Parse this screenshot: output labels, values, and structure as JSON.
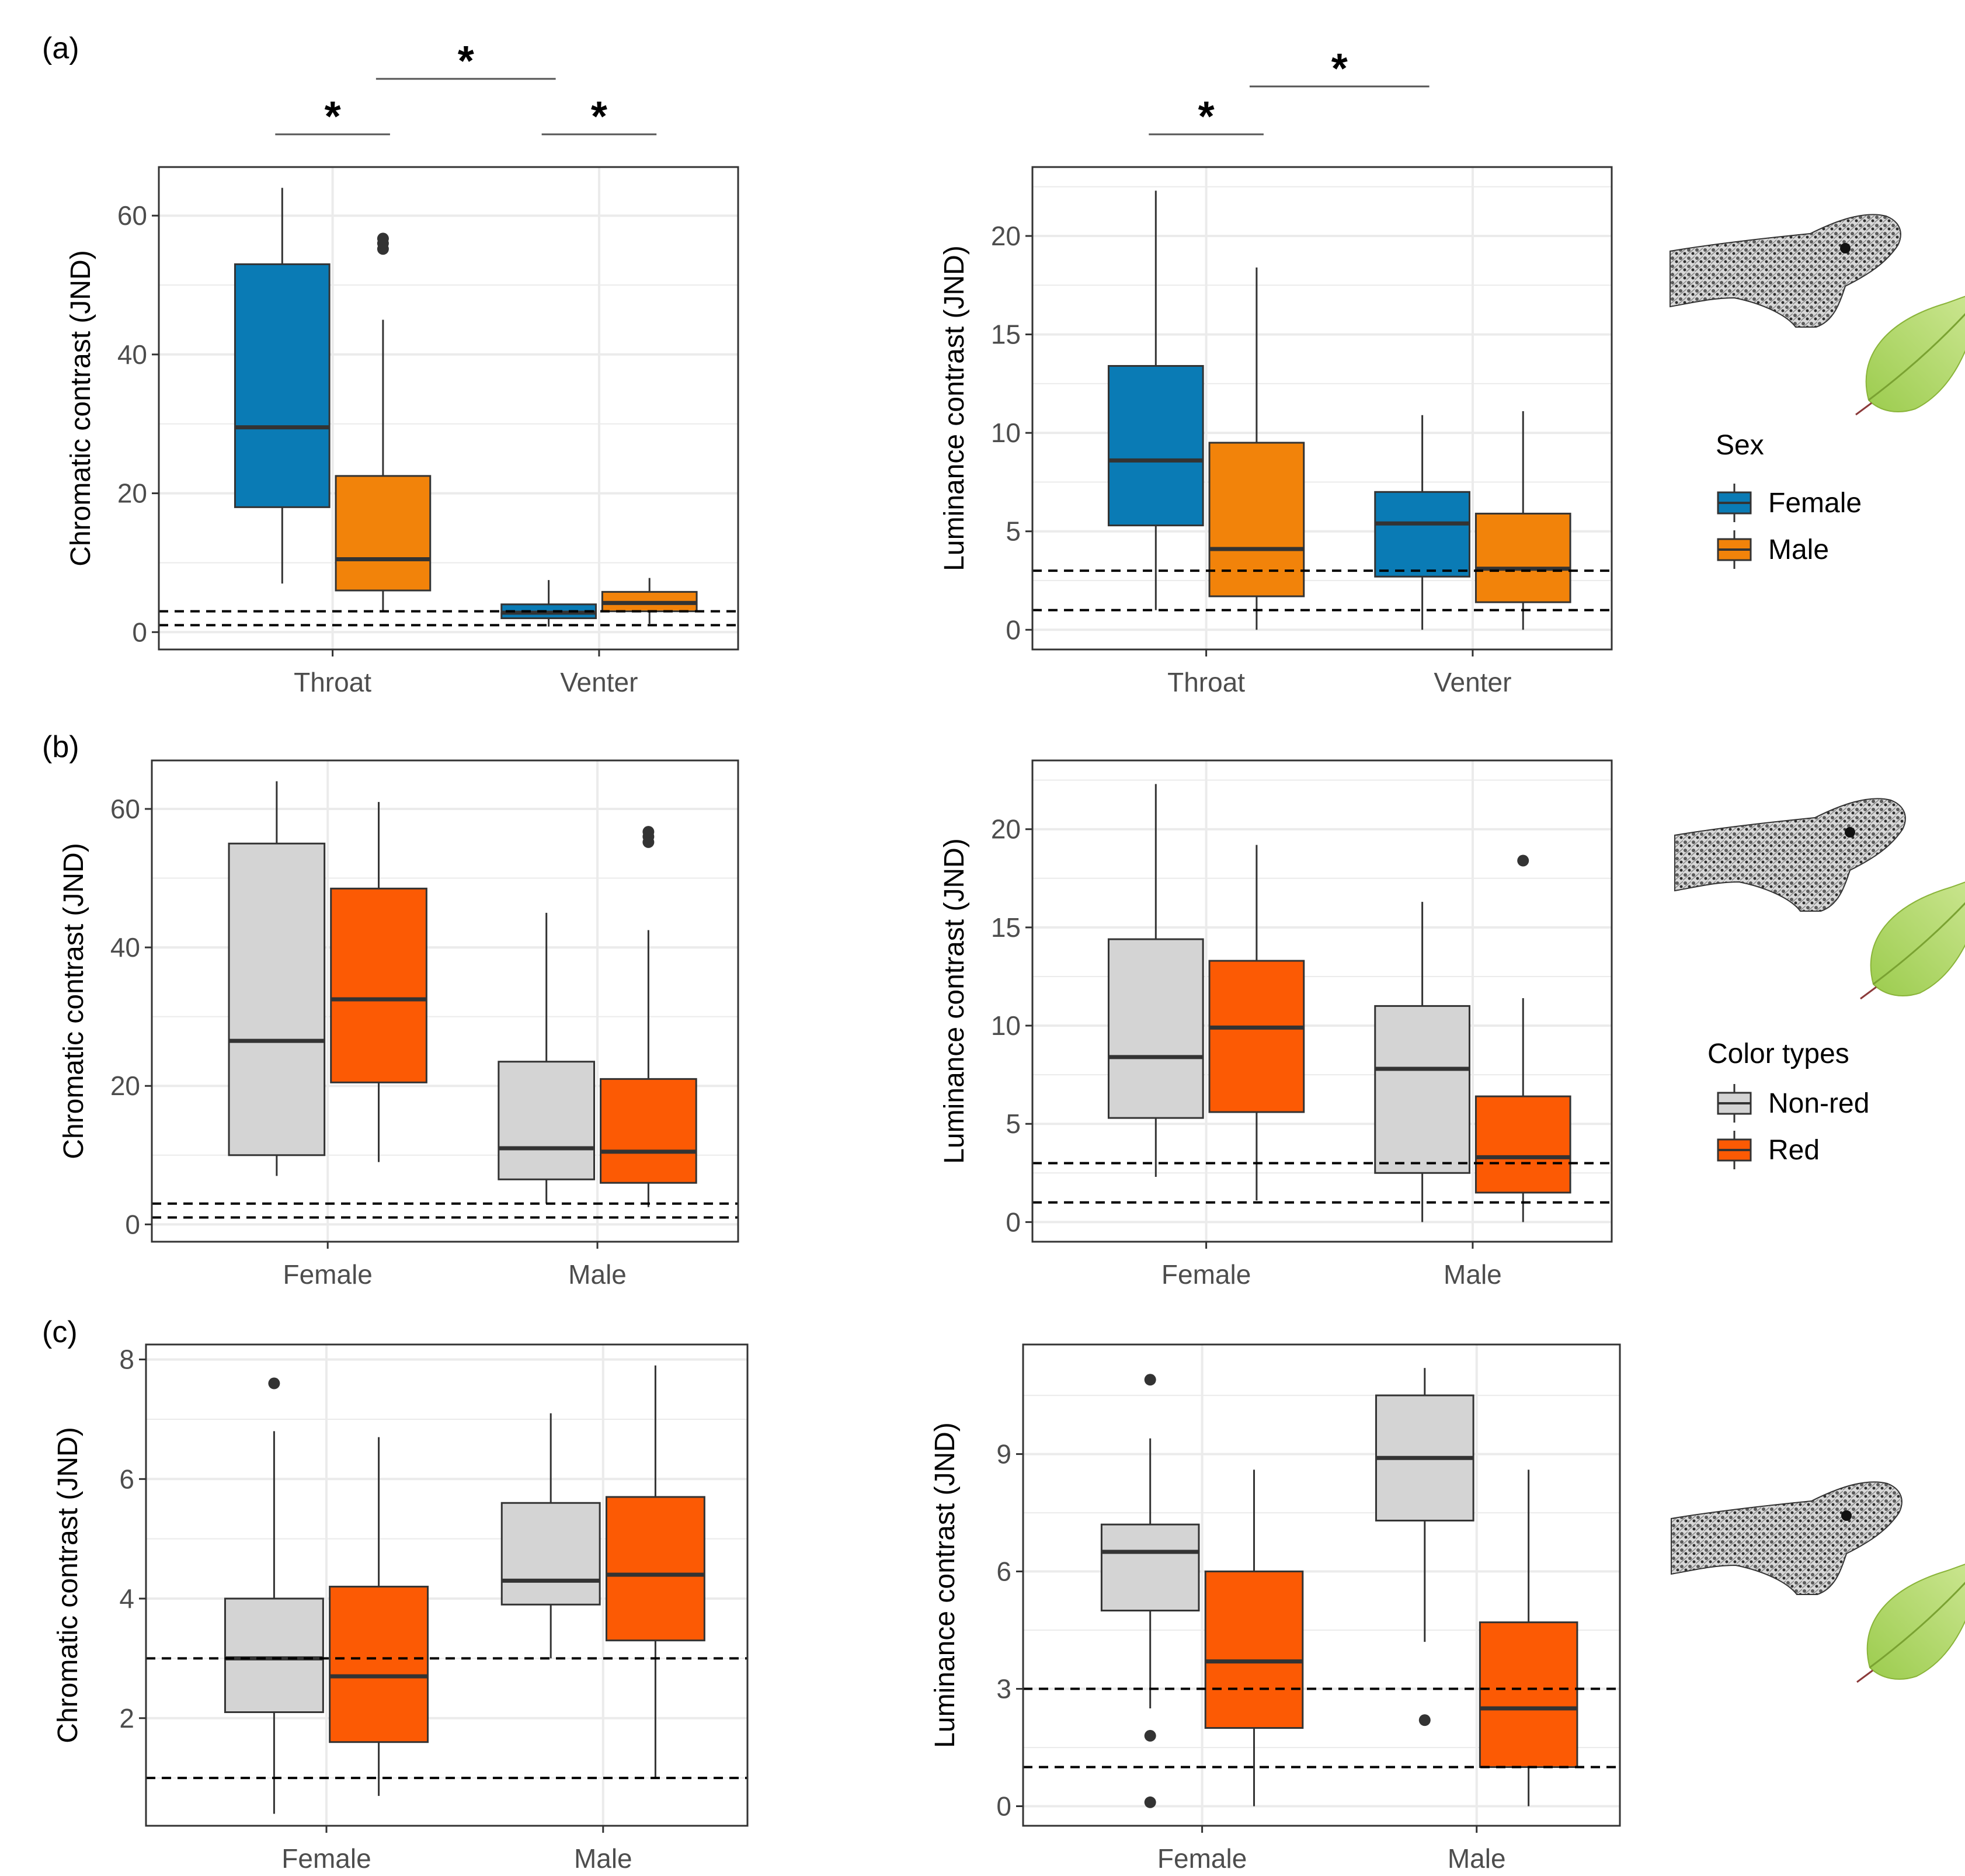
{
  "colors": {
    "female": "#0a7bb5",
    "male": "#f2830a",
    "nonred": "#d4d4d4",
    "red": "#fc5a04",
    "grid": "#ebebeb",
    "panel_border": "#333333",
    "box_line": "#333333"
  },
  "icons": [
    "lizard-leaf-illustration"
  ],
  "legends": {
    "sex": {
      "title": "Sex",
      "items": [
        "Female",
        "Male"
      ]
    },
    "color_types": {
      "title": "Color types",
      "items": [
        "Non-red",
        "Red"
      ]
    }
  },
  "chart_data": [
    {
      "id": "a-left",
      "panel_label": "(a)",
      "type": "boxplot",
      "ylabel": "Chromatic contrast (JND)",
      "categories": [
        "Throat",
        "Venter"
      ],
      "group_legend": "sex",
      "ylim": [
        -2.5,
        67
      ],
      "yticks": [
        0,
        20,
        40,
        60
      ],
      "reference_lines": [
        1,
        3
      ],
      "boxes": [
        {
          "category": "Throat",
          "group": "Female",
          "min": 7,
          "q1": 18,
          "median": 29.5,
          "q3": 53,
          "max": 64,
          "outliers": []
        },
        {
          "category": "Throat",
          "group": "Male",
          "min": 3,
          "q1": 6,
          "median": 10.5,
          "q3": 22.5,
          "max": 45,
          "outliers": [
            55.2,
            56,
            56.7
          ]
        },
        {
          "category": "Venter",
          "group": "Female",
          "min": 0.8,
          "q1": 2,
          "median": 2.8,
          "q3": 4,
          "max": 7.5,
          "outliers": []
        },
        {
          "category": "Venter",
          "group": "Male",
          "min": 1.2,
          "q1": 3,
          "median": 4.2,
          "q3": 5.8,
          "max": 7.8,
          "outliers": []
        }
      ],
      "significance": [
        {
          "between": [
            "Throat Female",
            "Throat Male"
          ],
          "label": "*"
        },
        {
          "between": [
            "Throat Male",
            "Venter Female"
          ],
          "label": "*"
        },
        {
          "between": [
            "Venter Female",
            "Venter Male"
          ],
          "label": "*"
        }
      ]
    },
    {
      "id": "a-right",
      "panel_label": "",
      "type": "boxplot",
      "ylabel": "Luminance contrast (JND)",
      "categories": [
        "Throat",
        "Venter"
      ],
      "group_legend": "sex",
      "ylim": [
        -1,
        23.5
      ],
      "yticks": [
        0,
        5,
        10,
        15,
        20
      ],
      "reference_lines": [
        1,
        3
      ],
      "boxes": [
        {
          "category": "Throat",
          "group": "Female",
          "min": 1,
          "q1": 5.3,
          "median": 8.6,
          "q3": 13.4,
          "max": 22.3,
          "outliers": []
        },
        {
          "category": "Throat",
          "group": "Male",
          "min": 0,
          "q1": 1.7,
          "median": 4.1,
          "q3": 9.5,
          "max": 18.4,
          "outliers": []
        },
        {
          "category": "Venter",
          "group": "Female",
          "min": 0,
          "q1": 2.7,
          "median": 5.4,
          "q3": 7,
          "max": 10.9,
          "outliers": []
        },
        {
          "category": "Venter",
          "group": "Male",
          "min": 0,
          "q1": 1.4,
          "median": 3.1,
          "q3": 5.9,
          "max": 11.1,
          "outliers": []
        }
      ],
      "significance": [
        {
          "between": [
            "Throat Female",
            "Throat Male"
          ],
          "label": "*"
        },
        {
          "between": [
            "Throat Male",
            "Venter Female"
          ],
          "label": "*"
        }
      ]
    },
    {
      "id": "b-left",
      "panel_label": "(b)",
      "type": "boxplot",
      "ylabel": "Chromatic contrast (JND)",
      "categories": [
        "Female",
        "Male"
      ],
      "group_legend": "color_types",
      "ylim": [
        -2.5,
        67
      ],
      "yticks": [
        0,
        20,
        40,
        60
      ],
      "reference_lines": [
        1,
        3
      ],
      "boxes": [
        {
          "category": "Female",
          "group": "Non-red",
          "min": 7,
          "q1": 10,
          "median": 26.5,
          "q3": 55,
          "max": 64,
          "outliers": []
        },
        {
          "category": "Female",
          "group": "Red",
          "min": 9,
          "q1": 20.5,
          "median": 32.5,
          "q3": 48.5,
          "max": 61,
          "outliers": []
        },
        {
          "category": "Male",
          "group": "Non-red",
          "min": 3,
          "q1": 6.5,
          "median": 11,
          "q3": 23.5,
          "max": 45,
          "outliers": []
        },
        {
          "category": "Male",
          "group": "Red",
          "min": 2.5,
          "q1": 6,
          "median": 10.5,
          "q3": 21,
          "max": 42.5,
          "outliers": [
            55.2,
            56,
            56.7
          ]
        }
      ],
      "significance": []
    },
    {
      "id": "b-right",
      "panel_label": "",
      "type": "boxplot",
      "ylabel": "Luminance contrast (JND)",
      "categories": [
        "Female",
        "Male"
      ],
      "group_legend": "color_types",
      "ylim": [
        -1,
        23.5
      ],
      "yticks": [
        0,
        5,
        10,
        15,
        20
      ],
      "reference_lines": [
        1,
        3
      ],
      "boxes": [
        {
          "category": "Female",
          "group": "Non-red",
          "min": 2.3,
          "q1": 5.3,
          "median": 8.4,
          "q3": 14.4,
          "max": 22.3,
          "outliers": []
        },
        {
          "category": "Female",
          "group": "Red",
          "min": 1.1,
          "q1": 5.6,
          "median": 9.9,
          "q3": 13.3,
          "max": 19.2,
          "outliers": []
        },
        {
          "category": "Male",
          "group": "Non-red",
          "min": 0,
          "q1": 2.5,
          "median": 7.8,
          "q3": 11,
          "max": 16.3,
          "outliers": []
        },
        {
          "category": "Male",
          "group": "Red",
          "min": 0,
          "q1": 1.5,
          "median": 3.3,
          "q3": 6.4,
          "max": 11.4,
          "outliers": [
            18.4
          ]
        }
      ],
      "significance": []
    },
    {
      "id": "c-left",
      "panel_label": "(c)",
      "type": "boxplot",
      "ylabel": "Chromatic contrast (JND)",
      "categories": [
        "Female",
        "Male"
      ],
      "group_legend": "color_types",
      "ylim": [
        0.2,
        8.25
      ],
      "yticks": [
        2,
        4,
        6,
        8
      ],
      "reference_lines": [
        1,
        3
      ],
      "boxes": [
        {
          "category": "Female",
          "group": "Non-red",
          "min": 0.4,
          "q1": 2.1,
          "median": 3,
          "q3": 4,
          "max": 6.8,
          "outliers": [
            7.6
          ]
        },
        {
          "category": "Female",
          "group": "Red",
          "min": 0.7,
          "q1": 1.6,
          "median": 2.7,
          "q3": 4.2,
          "max": 6.7,
          "outliers": []
        },
        {
          "category": "Male",
          "group": "Non-red",
          "min": 3,
          "q1": 3.9,
          "median": 4.3,
          "q3": 5.6,
          "max": 7.1,
          "outliers": []
        },
        {
          "category": "Male",
          "group": "Red",
          "min": 1,
          "q1": 3.3,
          "median": 4.4,
          "q3": 5.7,
          "max": 7.9,
          "outliers": []
        }
      ],
      "significance": []
    },
    {
      "id": "c-right",
      "panel_label": "",
      "type": "boxplot",
      "ylabel": "Luminance contrast (JND)",
      "categories": [
        "Female",
        "Male"
      ],
      "group_legend": "color_types",
      "ylim": [
        -0.5,
        11.8
      ],
      "yticks": [
        0,
        3,
        6,
        9
      ],
      "reference_lines": [
        1,
        3
      ],
      "boxes": [
        {
          "category": "Female",
          "group": "Non-red",
          "min": 2.5,
          "q1": 5,
          "median": 6.5,
          "q3": 7.2,
          "max": 9.4,
          "outliers": [
            10.9,
            1.8,
            0.1
          ]
        },
        {
          "category": "Female",
          "group": "Red",
          "min": 0,
          "q1": 2,
          "median": 3.7,
          "q3": 6,
          "max": 8.6,
          "outliers": []
        },
        {
          "category": "Male",
          "group": "Non-red",
          "min": 4.2,
          "q1": 7.3,
          "median": 8.9,
          "q3": 10.5,
          "max": 11.2,
          "outliers": [
            2.2
          ]
        },
        {
          "category": "Male",
          "group": "Red",
          "min": 0,
          "q1": 1,
          "median": 2.5,
          "q3": 4.7,
          "max": 8.6,
          "outliers": []
        }
      ],
      "significance": []
    }
  ]
}
